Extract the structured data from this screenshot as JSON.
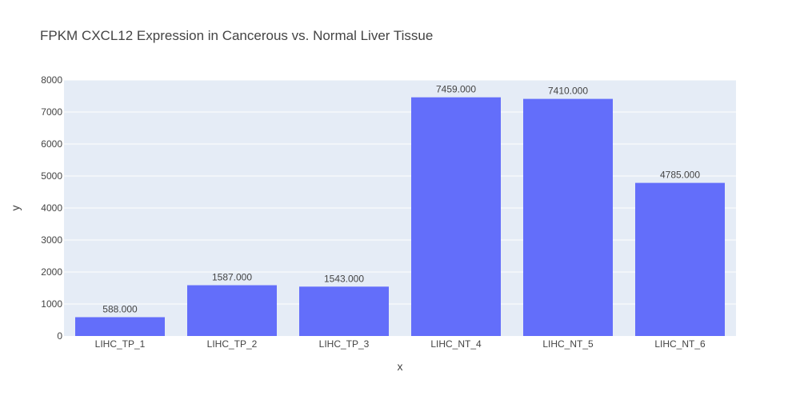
{
  "chart_data": {
    "type": "bar",
    "title": "FPKM CXCL12 Expression in Cancerous vs. Normal Liver Tissue",
    "xlabel": "x",
    "ylabel": "y",
    "categories": [
      "LIHC_TP_1",
      "LIHC_TP_2",
      "LIHC_TP_3",
      "LIHC_NT_4",
      "LIHC_NT_5",
      "LIHC_NT_6"
    ],
    "values": [
      588,
      1587,
      1543,
      7459,
      7410,
      4785
    ],
    "value_labels": [
      "588.000",
      "1587.000",
      "1543.000",
      "7459.000",
      "7410.000",
      "4785.000"
    ],
    "ylim": [
      0,
      8000
    ],
    "yticks": [
      0,
      1000,
      2000,
      3000,
      4000,
      5000,
      6000,
      7000,
      8000
    ],
    "ytick_labels": [
      "0",
      "1000",
      "2000",
      "3000",
      "4000",
      "5000",
      "6000",
      "7000",
      "8000"
    ],
    "grid": true,
    "legend": "none"
  },
  "colors": {
    "bar": "#636efa",
    "plot_background": "#e5ecf6",
    "grid": "#ffffff",
    "text": "#444444"
  }
}
